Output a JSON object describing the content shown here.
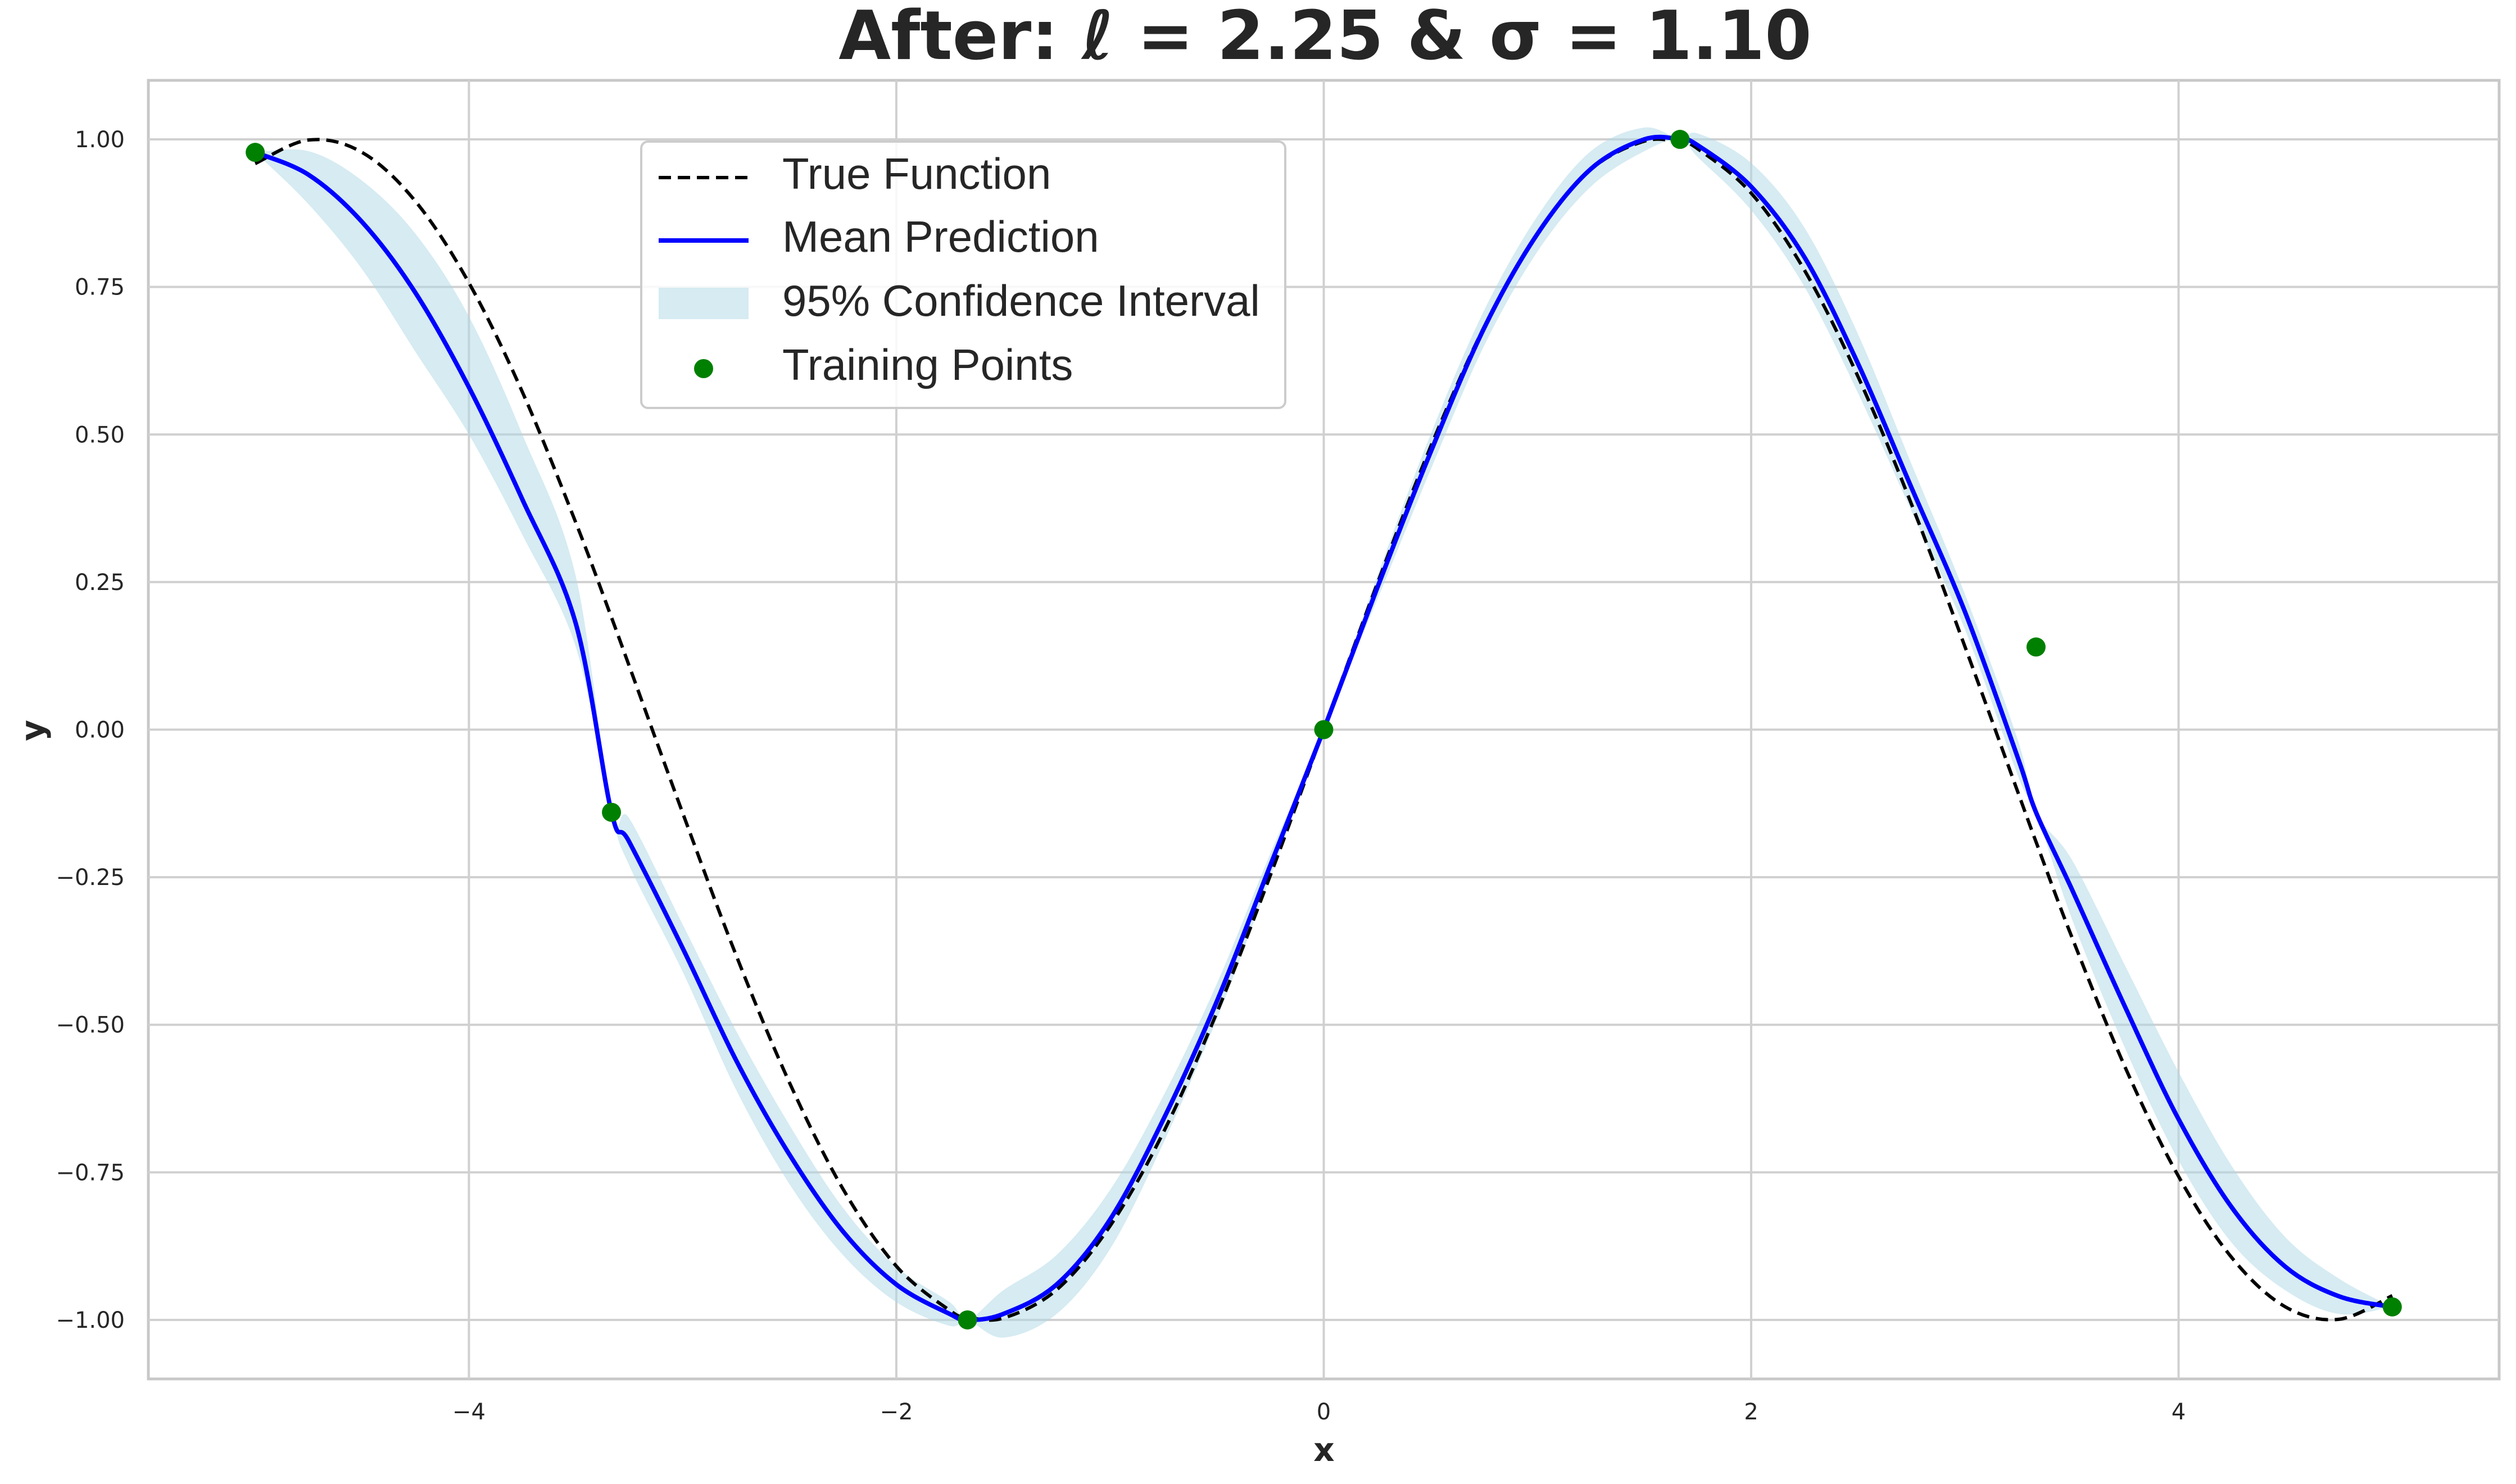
{
  "chart_data": {
    "type": "line",
    "title": "After: ℓ = 2.25 & σ = 1.10",
    "xlabel": "x",
    "ylabel": "y",
    "xlim": [
      -5.5,
      5.5
    ],
    "ylim": [
      -1.1,
      1.1
    ],
    "grid": true,
    "legend_placement": "upper-center",
    "xticks": [
      -4,
      -2,
      0,
      2,
      4
    ],
    "xtick_labels": [
      "−4",
      "−2",
      "0",
      "2",
      "4"
    ],
    "yticks": [
      1.0,
      0.75,
      0.5,
      0.25,
      0.0,
      -0.25,
      -0.5,
      -0.75,
      -1.0
    ],
    "ytick_labels": [
      "1.00",
      "0.75",
      "0.50",
      "0.25",
      "0.00",
      "−0.25",
      "−0.50",
      "−0.75",
      "−1.00"
    ],
    "x": [
      -5.0,
      -4.75,
      -4.5,
      -4.25,
      -4.0,
      -3.75,
      -3.5,
      -3.333,
      -3.25,
      -3.0,
      -2.75,
      -2.5,
      -2.25,
      -2.0,
      -1.75,
      -1.667,
      -1.5,
      -1.25,
      -1.0,
      -0.75,
      -0.5,
      -0.25,
      0.0,
      0.25,
      0.5,
      0.75,
      1.0,
      1.25,
      1.5,
      1.667,
      1.75,
      2.0,
      2.25,
      2.5,
      2.75,
      3.0,
      3.25,
      3.333,
      3.5,
      3.75,
      4.0,
      4.25,
      4.5,
      4.75,
      5.0
    ],
    "series": [
      {
        "name": "True Function",
        "style": "dashed",
        "color": "#000000",
        "values": [
          0.959,
          0.999,
          0.978,
          0.895,
          0.757,
          0.572,
          0.351,
          0.19,
          0.108,
          -0.141,
          -0.382,
          -0.598,
          -0.778,
          -0.909,
          -0.984,
          -0.995,
          -0.997,
          -0.949,
          -0.841,
          -0.682,
          -0.479,
          -0.247,
          0.0,
          0.247,
          0.479,
          0.682,
          0.841,
          0.949,
          0.997,
          0.995,
          0.984,
          0.909,
          0.778,
          0.598,
          0.382,
          0.141,
          -0.108,
          -0.19,
          -0.351,
          -0.572,
          -0.757,
          -0.895,
          -0.978,
          -0.999,
          -0.959
        ]
      },
      {
        "name": "Mean Prediction",
        "style": "solid",
        "color": "#0000ff",
        "values": [
          0.978,
          0.94,
          0.86,
          0.74,
          0.58,
          0.39,
          0.18,
          -0.14,
          -0.19,
          -0.37,
          -0.56,
          -0.72,
          -0.85,
          -0.94,
          -0.99,
          -1.0,
          -0.99,
          -0.94,
          -0.83,
          -0.66,
          -0.46,
          -0.23,
          0.0,
          0.24,
          0.47,
          0.68,
          0.84,
          0.95,
          1.0,
          1.0,
          0.99,
          0.92,
          0.8,
          0.62,
          0.41,
          0.2,
          -0.05,
          -0.14,
          -0.27,
          -0.47,
          -0.66,
          -0.81,
          -0.91,
          -0.96,
          -0.978
        ]
      },
      {
        "name": "95% Confidence Interval",
        "style": "band",
        "color": "#add8e6",
        "lower": [
          0.978,
          0.89,
          0.78,
          0.64,
          0.5,
          0.33,
          0.14,
          -0.14,
          -0.23,
          -0.41,
          -0.61,
          -0.77,
          -0.89,
          -0.97,
          -1.01,
          -1.0,
          -1.03,
          -0.99,
          -0.88,
          -0.7,
          -0.49,
          -0.25,
          0.0,
          0.22,
          0.44,
          0.65,
          0.81,
          0.92,
          0.98,
          1.0,
          0.97,
          0.88,
          0.75,
          0.57,
          0.37,
          0.17,
          -0.08,
          -0.14,
          -0.32,
          -0.54,
          -0.73,
          -0.87,
          -0.95,
          -0.99,
          -0.978
        ],
        "upper": [
          0.978,
          0.98,
          0.93,
          0.84,
          0.7,
          0.5,
          0.26,
          -0.14,
          -0.15,
          -0.33,
          -0.51,
          -0.67,
          -0.81,
          -0.91,
          -0.97,
          -1.0,
          -0.95,
          -0.89,
          -0.78,
          -0.62,
          -0.43,
          -0.21,
          0.0,
          0.26,
          0.5,
          0.71,
          0.87,
          0.98,
          1.02,
          1.0,
          1.01,
          0.96,
          0.85,
          0.67,
          0.45,
          0.23,
          -0.02,
          -0.14,
          -0.22,
          -0.4,
          -0.58,
          -0.74,
          -0.86,
          -0.93,
          -0.978
        ]
      },
      {
        "name": "Training Points",
        "style": "scatter",
        "color": "#008000",
        "x": [
          -5.0,
          -3.333,
          -1.667,
          0.0,
          1.667,
          3.333,
          5.0
        ],
        "y": [
          0.978,
          -0.14,
          -1.0,
          0.0,
          1.0,
          0.14,
          -0.978
        ]
      }
    ]
  }
}
